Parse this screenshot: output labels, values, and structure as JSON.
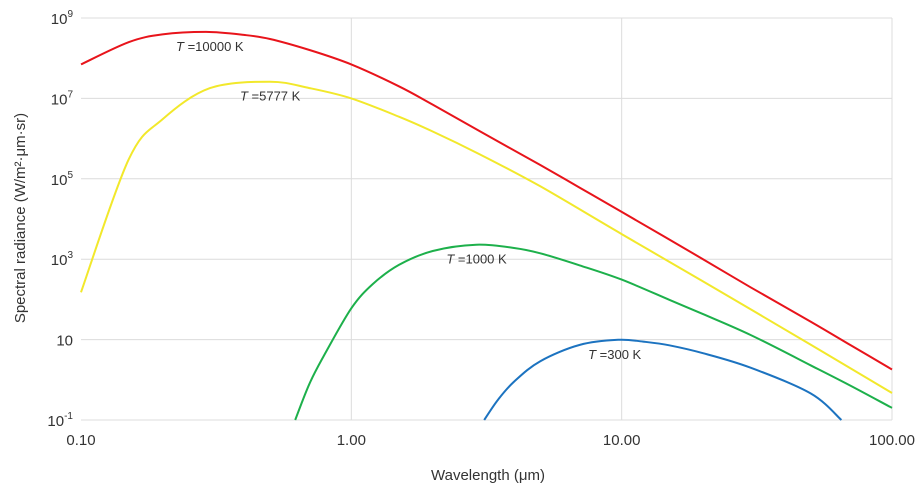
{
  "chart_data": {
    "type": "line",
    "xlabel": "Wavelength (μm)",
    "ylabel": "Spectral radiance (W/m²·μm·sr)",
    "x_scale": "log",
    "y_scale": "log",
    "xlim": [
      0.1,
      100
    ],
    "ylim": [
      0.1,
      1000000000
    ],
    "grid": true,
    "x_ticks": [
      {
        "value": 0.1,
        "label": "0.10"
      },
      {
        "value": 1,
        "label": "1.00"
      },
      {
        "value": 10,
        "label": "10.00"
      },
      {
        "value": 100,
        "label": "100.00"
      }
    ],
    "y_ticks": [
      {
        "value": 1000000000,
        "base": "10",
        "exp": "9"
      },
      {
        "value": 10000000,
        "base": "10",
        "exp": "7"
      },
      {
        "value": 100000,
        "base": "10",
        "exp": "5"
      },
      {
        "value": 1000,
        "base": "10",
        "exp": "3"
      },
      {
        "value": 10,
        "base": "10",
        "exp": ""
      },
      {
        "value": 0.1,
        "base": "10",
        "exp": "-1"
      }
    ],
    "series": [
      {
        "label_italic": "T",
        "label_rest": " =10000 K",
        "color": "#e8141b",
        "x": [
          0.1,
          0.15,
          0.2,
          0.29,
          0.4,
          0.5,
          0.7,
          1.0,
          1.5,
          2.0,
          3.0,
          5.0,
          7.0,
          10.0,
          20.0,
          30.0,
          50.0,
          70.0,
          100.0
        ],
        "y": [
          70000000,
          250000000,
          390000000,
          450000000,
          380000000,
          300000000,
          160000000,
          70000000,
          20000000,
          7000000,
          1500000,
          220000,
          60000,
          15000,
          1000,
          200,
          28,
          7.4,
          1.8
        ]
      },
      {
        "label_italic": "T",
        "label_rest": " =5777 K",
        "color": "#f2e82b",
        "x": [
          0.1,
          0.15,
          0.2,
          0.3,
          0.5,
          0.7,
          1.0,
          1.5,
          2.0,
          3.0,
          5.0,
          10.0,
          20.0,
          50.0,
          100.0
        ],
        "y": [
          150,
          300000,
          3000000,
          18000000,
          26000000,
          18000000,
          10000000,
          3500000,
          1500000,
          400000,
          65000,
          4200,
          280,
          7.5,
          0.47
        ]
      },
      {
        "label_italic": "T",
        "label_rest": " =1000 K",
        "color": "#1db04b",
        "x": [
          0.62,
          0.7,
          0.8,
          1.0,
          1.2,
          1.5,
          2.0,
          2.9,
          4.0,
          5.0,
          7.0,
          10.0,
          15.0,
          20.0,
          30.0,
          50.0,
          70.0,
          100.0
        ],
        "y": [
          0.1,
          0.8,
          4.5,
          60,
          240,
          720,
          1600,
          2300,
          1900,
          1400,
          700,
          310,
          98,
          43,
          13,
          2.3,
          0.72,
          0.2
        ]
      },
      {
        "label_italic": "T",
        "label_rest": " =300 K",
        "color": "#1c73c0",
        "x": [
          3.1,
          3.5,
          4.0,
          5.0,
          7.0,
          9.7,
          12.0,
          15.0,
          20.0,
          30.0,
          50.0,
          65.0
        ],
        "y": [
          0.1,
          0.33,
          0.9,
          2.9,
          7.4,
          9.9,
          8.9,
          7.2,
          4.6,
          2.0,
          0.46,
          0.1
        ]
      }
    ]
  }
}
